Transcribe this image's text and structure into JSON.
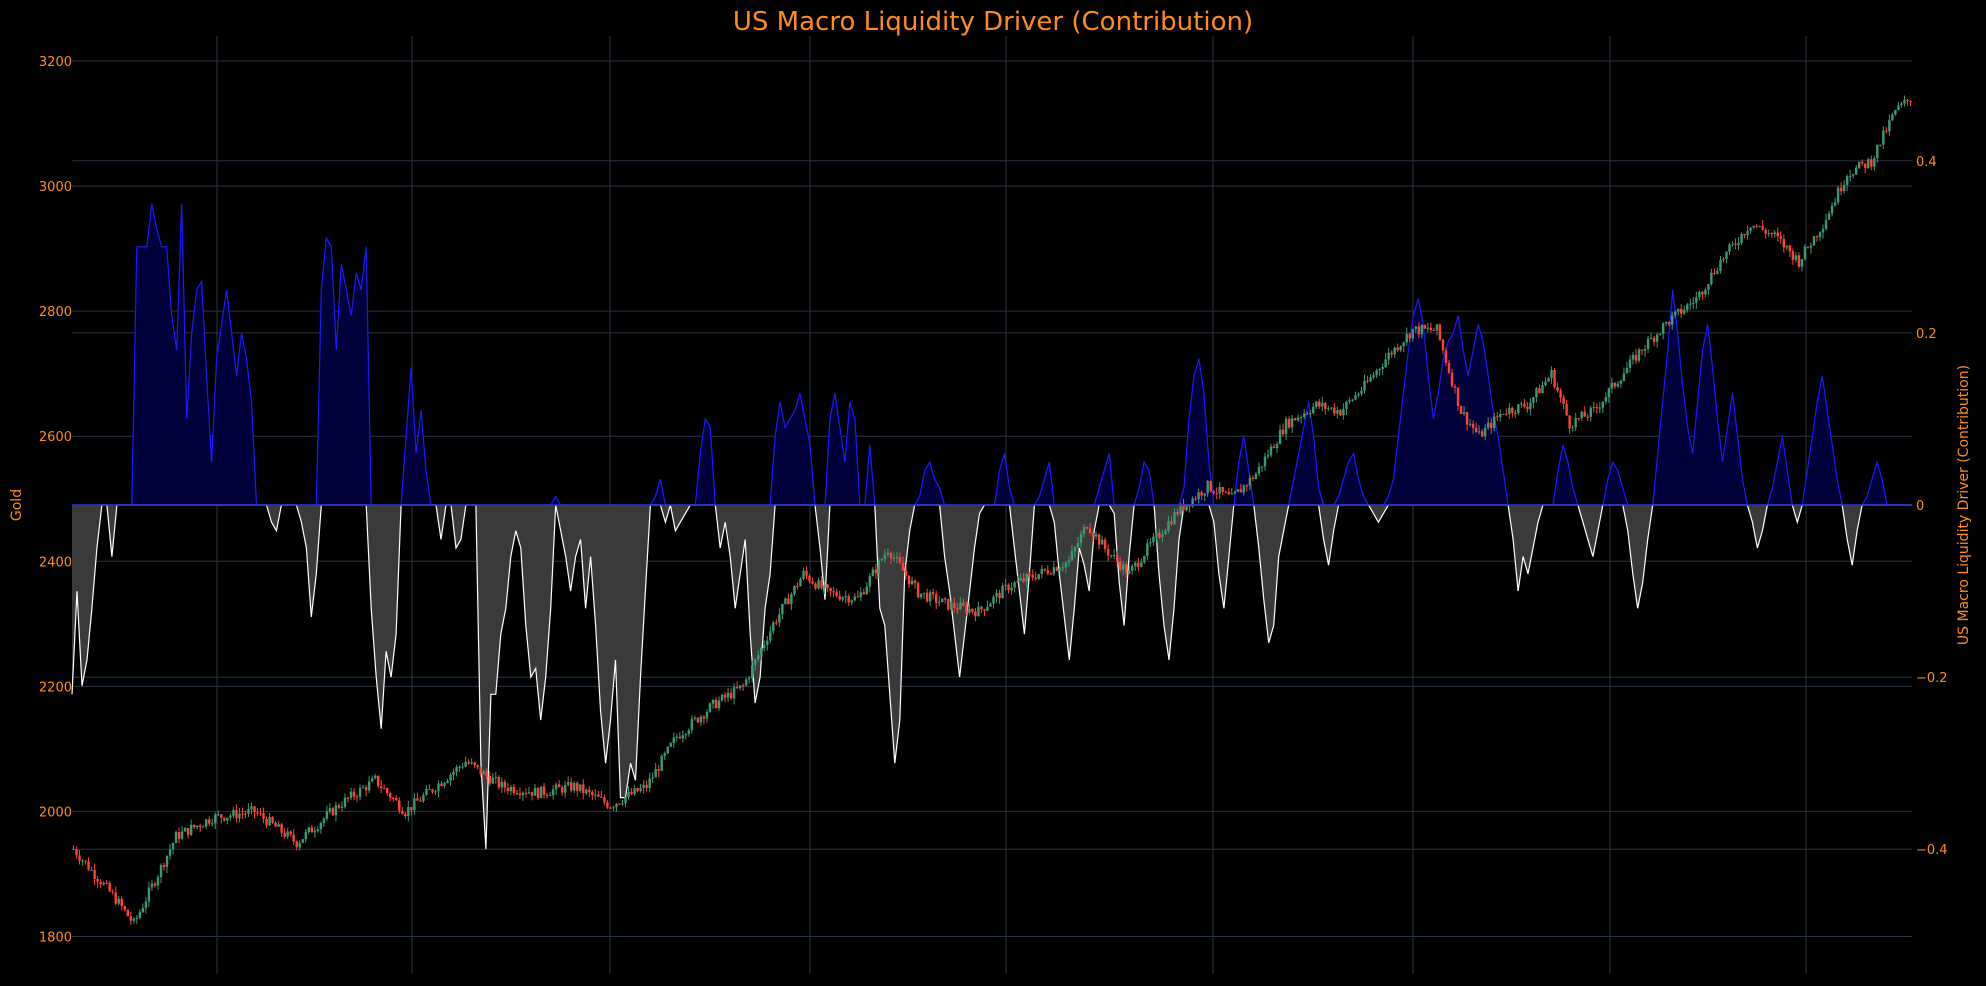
{
  "chart_data": {
    "type": "line",
    "title": "US Macro Liquidity Driver (Contribution)",
    "ylabel_left": "Gold",
    "ylabel_right": "US Macro Liquidity Driver (Contribution)",
    "y_left": {
      "range": [
        1740,
        3240
      ],
      "ticks": [
        1800,
        2000,
        2200,
        2400,
        2600,
        2800,
        3000,
        3200
      ]
    },
    "y_right": {
      "range": [
        -0.545,
        0.545
      ],
      "ticks": [
        -0.4,
        -0.2,
        0,
        0.2,
        0.4
      ],
      "tick_labels": [
        "−0.4",
        "−0.2",
        "0",
        "0.2",
        "0.4"
      ]
    },
    "grid": true,
    "legend": "none",
    "colors": {
      "background": "#000000",
      "grid": "#2a3446",
      "accent_text": "#ff8c1a",
      "candle_up": "#3d9970",
      "candle_down": "#ff4136",
      "positive_line": "#1a1aff",
      "positive_fill": "#00003a",
      "negative_line": "#ffffff",
      "negative_fill": "#3a3a3a",
      "zero_line": "#2233cc"
    },
    "gold_anchors": [
      [
        0,
        1940
      ],
      [
        14,
        1860
      ],
      [
        20,
        1820
      ],
      [
        26,
        1880
      ],
      [
        34,
        1960
      ],
      [
        46,
        1990
      ],
      [
        60,
        2000
      ],
      [
        74,
        1950
      ],
      [
        88,
        2010
      ],
      [
        100,
        2050
      ],
      [
        110,
        2000
      ],
      [
        120,
        2040
      ],
      [
        130,
        2080
      ],
      [
        142,
        2040
      ],
      [
        154,
        2030
      ],
      [
        166,
        2040
      ],
      [
        178,
        2010
      ],
      [
        190,
        2040
      ],
      [
        200,
        2120
      ],
      [
        212,
        2170
      ],
      [
        222,
        2200
      ],
      [
        232,
        2300
      ],
      [
        242,
        2380
      ],
      [
        250,
        2350
      ],
      [
        260,
        2340
      ],
      [
        270,
        2420
      ],
      [
        280,
        2350
      ],
      [
        290,
        2330
      ],
      [
        300,
        2320
      ],
      [
        310,
        2360
      ],
      [
        320,
        2380
      ],
      [
        330,
        2400
      ],
      [
        336,
        2460
      ],
      [
        342,
        2420
      ],
      [
        350,
        2380
      ],
      [
        356,
        2420
      ],
      [
        366,
        2480
      ],
      [
        376,
        2520
      ],
      [
        384,
        2500
      ],
      [
        392,
        2540
      ],
      [
        402,
        2620
      ],
      [
        412,
        2650
      ],
      [
        420,
        2640
      ],
      [
        428,
        2680
      ],
      [
        436,
        2730
      ],
      [
        444,
        2770
      ],
      [
        452,
        2770
      ],
      [
        460,
        2640
      ],
      [
        466,
        2600
      ],
      [
        474,
        2640
      ],
      [
        482,
        2650
      ],
      [
        490,
        2700
      ],
      [
        496,
        2620
      ],
      [
        504,
        2640
      ],
      [
        512,
        2690
      ],
      [
        520,
        2740
      ],
      [
        528,
        2780
      ],
      [
        538,
        2820
      ],
      [
        546,
        2880
      ],
      [
        556,
        2940
      ],
      [
        564,
        2920
      ],
      [
        572,
        2880
      ],
      [
        580,
        2940
      ],
      [
        588,
        3020
      ],
      [
        596,
        3040
      ],
      [
        604,
        3120
      ],
      [
        609,
        3140
      ]
    ],
    "candle_count": 610,
    "liquidity_contribution": [
      -0.22,
      -0.1,
      -0.21,
      -0.18,
      -0.12,
      -0.05,
      0.0,
      0.0,
      -0.06,
      0.0,
      0.0,
      0.0,
      0.0,
      0.3,
      0.3,
      0.3,
      0.35,
      0.32,
      0.3,
      0.3,
      0.22,
      0.18,
      0.35,
      0.1,
      0.2,
      0.25,
      0.26,
      0.15,
      0.05,
      0.17,
      0.21,
      0.25,
      0.2,
      0.15,
      0.2,
      0.17,
      0.12,
      0.0,
      0.0,
      0.0,
      -0.02,
      -0.03,
      0.0,
      0.0,
      0.0,
      0.0,
      -0.02,
      -0.05,
      -0.13,
      -0.08,
      0.25,
      0.31,
      0.3,
      0.18,
      0.28,
      0.25,
      0.22,
      0.27,
      0.25,
      0.3,
      -0.12,
      -0.2,
      -0.26,
      -0.17,
      -0.2,
      -0.15,
      0.0,
      0.08,
      0.16,
      0.06,
      0.11,
      0.04,
      0.0,
      0.0,
      -0.04,
      0.0,
      0.0,
      -0.05,
      -0.04,
      0.0,
      0.0,
      0.0,
      -0.3,
      -0.4,
      -0.22,
      -0.22,
      -0.15,
      -0.12,
      -0.06,
      -0.03,
      -0.05,
      -0.14,
      -0.2,
      -0.19,
      -0.25,
      -0.2,
      -0.12,
      0.01,
      -0.03,
      -0.06,
      -0.1,
      -0.06,
      -0.04,
      -0.12,
      -0.06,
      -0.14,
      -0.24,
      -0.3,
      -0.25,
      -0.18,
      -0.34,
      -0.34,
      -0.3,
      -0.32,
      -0.2,
      -0.1,
      0.0,
      0.01,
      0.03,
      -0.02,
      0.0,
      -0.03,
      -0.02,
      -0.01,
      0.0,
      0.0,
      0.06,
      0.1,
      0.09,
      0.0,
      -0.05,
      -0.02,
      -0.06,
      -0.12,
      -0.08,
      -0.04,
      -0.15,
      -0.23,
      -0.2,
      -0.12,
      -0.08,
      0.08,
      0.12,
      0.09,
      0.1,
      0.11,
      0.13,
      0.1,
      0.07,
      0.0,
      -0.05,
      -0.11,
      0.1,
      0.13,
      0.09,
      0.05,
      0.12,
      0.1,
      0.0,
      0.0,
      0.07,
      0.0,
      -0.12,
      -0.14,
      -0.22,
      -0.3,
      -0.25,
      -0.08,
      -0.03,
      0.0,
      0.01,
      0.04,
      0.05,
      0.03,
      0.02,
      -0.06,
      -0.1,
      -0.15,
      -0.2,
      -0.15,
      -0.1,
      -0.05,
      -0.01,
      0.0,
      0.0,
      0.0,
      0.04,
      0.06,
      0.02,
      -0.05,
      -0.1,
      -0.15,
      -0.08,
      0.0,
      0.01,
      0.03,
      0.05,
      -0.02,
      -0.08,
      -0.13,
      -0.18,
      -0.12,
      -0.05,
      -0.07,
      -0.1,
      -0.03,
      0.02,
      0.04,
      0.06,
      -0.01,
      -0.09,
      -0.14,
      -0.06,
      0.0,
      0.02,
      0.05,
      0.04,
      0.0,
      -0.08,
      -0.14,
      -0.18,
      -0.12,
      -0.04,
      0.02,
      0.1,
      0.15,
      0.17,
      0.13,
      0.05,
      -0.02,
      -0.08,
      -0.12,
      -0.06,
      0.0,
      0.05,
      0.08,
      0.04,
      0.0,
      -0.05,
      -0.11,
      -0.16,
      -0.14,
      -0.06,
      -0.03,
      0.0,
      0.03,
      0.06,
      0.09,
      0.12,
      0.08,
      0.02,
      -0.04,
      -0.07,
      -0.03,
      0.01,
      0.03,
      0.05,
      0.06,
      0.03,
      0.01,
      0.0,
      -0.01,
      -0.02,
      -0.01,
      0.01,
      0.03,
      0.08,
      0.13,
      0.18,
      0.22,
      0.24,
      0.21,
      0.15,
      0.1,
      0.13,
      0.17,
      0.19,
      0.2,
      0.22,
      0.18,
      0.15,
      0.18,
      0.21,
      0.19,
      0.15,
      0.11,
      0.08,
      0.04,
      0.0,
      -0.04,
      -0.1,
      -0.06,
      -0.08,
      -0.05,
      -0.02,
      0.0,
      0.0,
      0.0,
      0.04,
      0.07,
      0.05,
      0.02,
      0.0,
      -0.02,
      -0.04,
      -0.06,
      -0.03,
      0.0,
      0.03,
      0.05,
      0.04,
      0.02,
      -0.03,
      -0.08,
      -0.12,
      -0.09,
      -0.04,
      0.0,
      0.06,
      0.12,
      0.18,
      0.25,
      0.2,
      0.14,
      0.09,
      0.06,
      0.12,
      0.18,
      0.21,
      0.16,
      0.1,
      0.05,
      0.09,
      0.13,
      0.08,
      0.03,
      0.0,
      -0.02,
      -0.05,
      -0.03,
      0.0,
      0.02,
      0.05,
      0.08,
      0.04,
      0.0,
      -0.02,
      0.0,
      0.04,
      0.08,
      0.12,
      0.15,
      0.11,
      0.07,
      0.03,
      0.0,
      -0.04,
      -0.07,
      -0.03,
      0.0,
      0.01,
      0.03,
      0.05,
      0.03,
      0.0,
      0.0,
      0.0,
      0.0,
      0.0,
      0.0
    ]
  }
}
